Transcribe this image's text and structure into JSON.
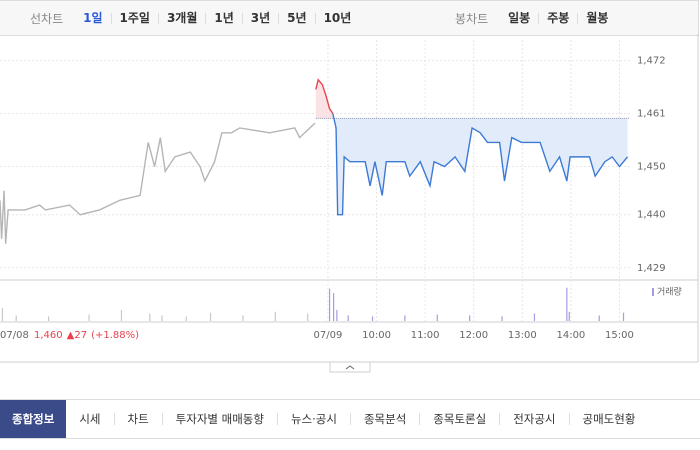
{
  "toolbar": {
    "line_label": "선차트",
    "line_periods": [
      "1일",
      "1주일",
      "3개월",
      "1년",
      "3년",
      "5년",
      "10년"
    ],
    "candle_label": "봉차트",
    "candle_periods": [
      "일봉",
      "주봉",
      "월봉"
    ]
  },
  "chart_data": {
    "type": "line",
    "xlim": [
      0,
      778
    ],
    "ylim": [
      1427.5,
      1475
    ],
    "yticks": [
      {
        "value": 1429,
        "label": "1,429"
      },
      {
        "value": 1440,
        "label": "1,440"
      },
      {
        "value": 1450,
        "label": "1,450"
      },
      {
        "value": 1461,
        "label": "1,461"
      },
      {
        "value": 1472,
        "label": "1,472"
      }
    ],
    "xticks": [
      {
        "value": 0,
        "label": "07/08"
      },
      {
        "value": 405,
        "label": "07/09"
      },
      {
        "value": 465,
        "label": "10:00"
      },
      {
        "value": 525,
        "label": "11:00"
      },
      {
        "value": 585,
        "label": "12:00"
      },
      {
        "value": 645,
        "label": "13:00"
      },
      {
        "value": 705,
        "label": "14:00"
      },
      {
        "value": 765,
        "label": "15:00"
      }
    ],
    "grid": true,
    "reference_line": 1460,
    "series": [
      {
        "color": "#b5b5b5",
        "x": [
          0,
          2,
          5,
          7,
          10,
          31,
          49,
          56,
          86,
          99,
          123,
          148,
          173,
          183,
          191,
          198,
          204,
          216,
          235,
          247,
          253,
          265,
          274,
          286,
          296,
          333,
          364,
          370,
          389
        ],
        "values": [
          1443,
          1435,
          1445,
          1434,
          1441,
          1441,
          1442,
          1441,
          1442,
          1440,
          1441,
          1443,
          1444,
          1455,
          1450,
          1456,
          1449,
          1452,
          1453,
          1450,
          1447,
          1451,
          1457,
          1457,
          1458,
          1457,
          1458,
          1456,
          1459
        ]
      },
      {
        "color": "#e8434d",
        "fill": "#fbe3e5",
        "x": [
          390,
          393,
          398,
          402,
          407,
          411
        ],
        "values": [
          1466,
          1468,
          1467,
          1465,
          1462,
          1461
        ]
      },
      {
        "color": "#3d7ad6",
        "fill": "#e2ebf9",
        "x": [
          411,
          415,
          417,
          423,
          425,
          432,
          451,
          457,
          463,
          472,
          477,
          500,
          506,
          519,
          531,
          536,
          549,
          562,
          574,
          583,
          593,
          602,
          617,
          623,
          632,
          644,
          667,
          679,
          691,
          700,
          704,
          728,
          735,
          747,
          756,
          765,
          775
        ],
        "values": [
          1461,
          1458,
          1440,
          1440,
          1452,
          1451,
          1451,
          1446,
          1451,
          1444,
          1451,
          1451,
          1448,
          1451,
          1446,
          1451,
          1450,
          1452,
          1449,
          1458,
          1457,
          1455,
          1455,
          1447,
          1456,
          1455,
          1455,
          1449,
          1452,
          1447,
          1452,
          1452,
          1448,
          1451,
          1452,
          1450,
          1452
        ]
      }
    ],
    "volume": {
      "label": "거래량",
      "ylim": [
        0,
        40
      ],
      "colors": [
        "#c8c8c8",
        "#a89be0"
      ],
      "x": [
        3,
        20,
        60,
        110,
        150,
        185,
        200,
        230,
        260,
        300,
        340,
        380,
        407,
        412,
        416,
        430,
        460,
        500,
        540,
        580,
        620,
        660,
        700,
        703,
        740,
        770
      ],
      "values": [
        14,
        6,
        5,
        7,
        12,
        8,
        6,
        5,
        9,
        6,
        10,
        8,
        35,
        30,
        12,
        6,
        5,
        6,
        7,
        6,
        5,
        8,
        36,
        10,
        6,
        9
      ],
      "day": [
        0,
        0,
        0,
        0,
        0,
        0,
        0,
        0,
        0,
        0,
        0,
        0,
        1,
        1,
        1,
        1,
        1,
        1,
        1,
        1,
        1,
        1,
        1,
        1,
        1,
        1
      ]
    },
    "info": {
      "price": "1,460",
      "change": "▲27",
      "rate": "(+1.88%)"
    }
  },
  "tabs": [
    "종합정보",
    "시세",
    "차트",
    "투자자별 매매동향",
    "뉴스·공시",
    "종목분석",
    "종목토론실",
    "전자공시",
    "공매도현황"
  ]
}
